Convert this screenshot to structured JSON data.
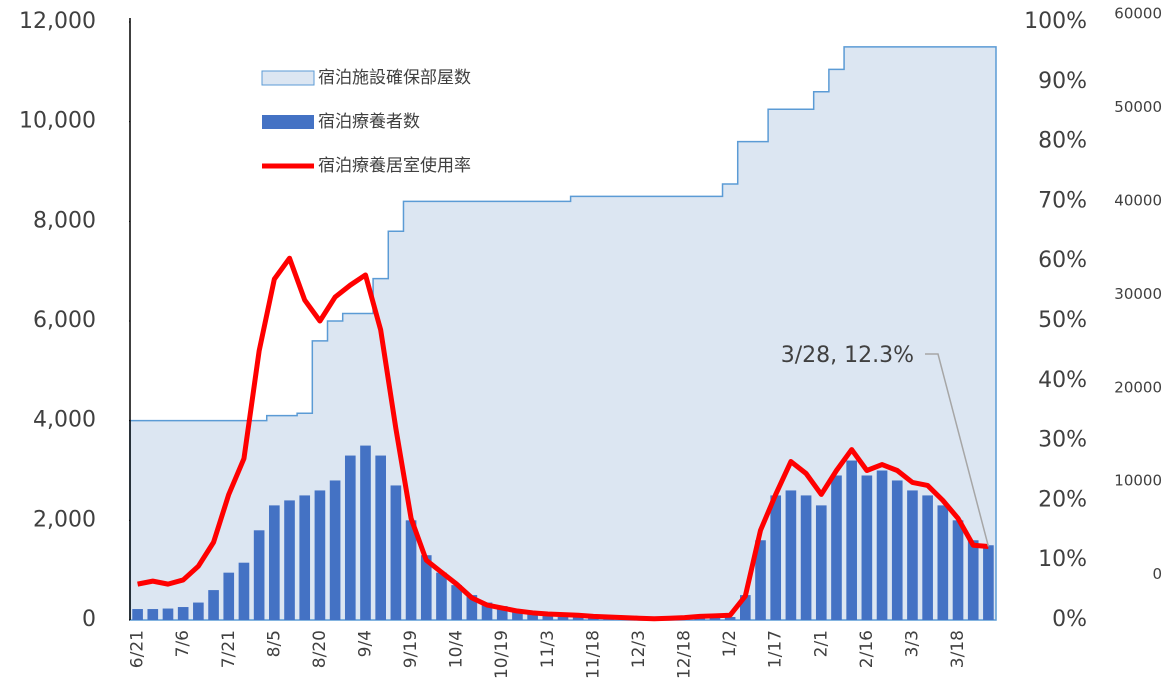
{
  "chart_data": {
    "type": "combo",
    "categories": [
      "6/21",
      null,
      null,
      "7/6",
      null,
      null,
      "7/21",
      null,
      null,
      "8/5",
      null,
      null,
      "8/20",
      null,
      null,
      "9/4",
      null,
      null,
      "9/19",
      null,
      null,
      "10/4",
      null,
      null,
      "10/19",
      null,
      null,
      "11/3",
      null,
      null,
      "11/18",
      null,
      null,
      "12/3",
      null,
      null,
      "12/18",
      null,
      null,
      "1/2",
      null,
      null,
      "1/17",
      null,
      null,
      "2/1",
      null,
      null,
      "2/16",
      null,
      null,
      "3/3",
      null,
      null,
      "3/18",
      null,
      null
    ],
    "series": [
      {
        "name": "宿泊施設確保部屋数",
        "type": "area",
        "color": "#5b9bd5",
        "fill": "#dce6f2",
        "values": [
          4000,
          4000,
          4000,
          4000,
          4000,
          4000,
          4000,
          4000,
          4000,
          4100,
          4100,
          4150,
          5600,
          6000,
          6150,
          6150,
          6850,
          7800,
          8400,
          8400,
          8400,
          8400,
          8400,
          8400,
          8400,
          8400,
          8400,
          8400,
          8400,
          8500,
          8500,
          8500,
          8500,
          8500,
          8500,
          8500,
          8500,
          8500,
          8500,
          8750,
          9600,
          9600,
          10250,
          10250,
          10250,
          10600,
          11050,
          11500,
          11500,
          11500,
          11500,
          11500,
          11500,
          11500,
          11500,
          11500,
          11500
        ]
      },
      {
        "name": "宿泊療養者数",
        "type": "bar",
        "color": "#4472c4",
        "values": [
          220,
          220,
          230,
          260,
          350,
          600,
          950,
          1150,
          1800,
          2300,
          2400,
          2500,
          2600,
          2800,
          3300,
          3500,
          3300,
          2700,
          2000,
          1300,
          950,
          700,
          500,
          350,
          280,
          200,
          130,
          80,
          60,
          50,
          40,
          30,
          25,
          20,
          20,
          20,
          25,
          40,
          50,
          60,
          500,
          1600,
          2500,
          2600,
          2500,
          2300,
          2900,
          3200,
          2900,
          3000,
          2800,
          2600,
          2500,
          2300,
          2000,
          1600,
          1500
        ]
      },
      {
        "name": "宿泊療養居室使用率",
        "type": "line",
        "color": "#ff0000",
        "axis": "y2",
        "values": [
          6,
          6.5,
          6,
          6.7,
          9,
          13,
          21,
          27,
          45,
          57,
          60.5,
          53.5,
          50,
          54,
          56,
          57.7,
          48.5,
          32,
          17,
          10,
          8,
          6,
          3.7,
          2.5,
          2,
          1.5,
          1.2,
          1,
          0.9,
          0.8,
          0.6,
          0.5,
          0.4,
          0.3,
          0.2,
          0.3,
          0.4,
          0.6,
          0.7,
          0.8,
          4,
          15,
          21,
          26.5,
          24.5,
          21,
          25,
          28.5,
          25,
          26,
          25,
          23,
          22.5,
          20,
          17,
          12.5,
          12.3
        ]
      }
    ],
    "ylim": [
      0,
      12000
    ],
    "yticks": [
      0,
      {
        "value": 2000,
        "label": "2,000"
      },
      {
        "value": 4000,
        "label": "4,000"
      },
      {
        "value": 6000,
        "label": "6,000"
      },
      {
        "value": 8000,
        "label": "8,000"
      },
      {
        "value": 10000,
        "label": "10,000"
      },
      {
        "value": 12000,
        "label": "12,000"
      }
    ],
    "y2lim": [
      0,
      100
    ],
    "y2ticks": [
      {
        "value": 0,
        "label": "0%"
      },
      {
        "value": 10,
        "label": "10%"
      },
      {
        "value": 20,
        "label": "20%"
      },
      {
        "value": 30,
        "label": "30%"
      },
      {
        "value": 40,
        "label": "40%"
      },
      {
        "value": 50,
        "label": "50%"
      },
      {
        "value": 60,
        "label": "60%"
      },
      {
        "value": 70,
        "label": "70%"
      },
      {
        "value": 80,
        "label": "80%"
      },
      {
        "value": 90,
        "label": "90%"
      },
      {
        "value": 100,
        "label": "100%"
      }
    ],
    "y3lim": [
      -4000,
      60000
    ],
    "y3ticks": [
      0,
      10000,
      20000,
      30000,
      40000,
      50000,
      60000
    ],
    "annotation": "3/28, 12.3%",
    "legend": "top-left"
  }
}
